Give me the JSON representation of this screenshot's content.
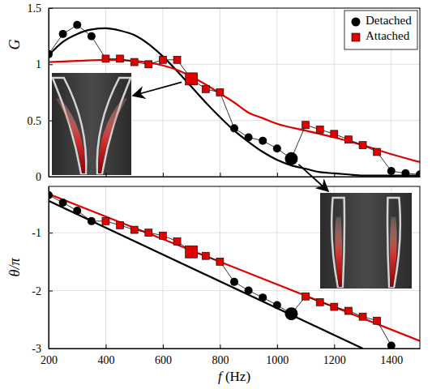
{
  "chart_data": [
    {
      "type": "line",
      "ylabel": "G",
      "xlim": [
        200,
        1500
      ],
      "xticks": [
        200,
        400,
        600,
        800,
        1000,
        1200,
        1400
      ],
      "ylim": [
        0,
        1.5
      ],
      "yticks": [
        0,
        0.5,
        1,
        1.5
      ],
      "tick_labels": "y",
      "grid": true,
      "legend": "upper right",
      "series": [
        {
          "name": "Detached",
          "color": "#000000",
          "marker": "circle",
          "highlight_x": 1050,
          "x": [
            200,
            250,
            300,
            350,
            850,
            900,
            950,
            1000,
            1050,
            1400,
            1450,
            1500
          ],
          "values": [
            1.09,
            1.27,
            1.35,
            1.25,
            0.43,
            0.35,
            0.32,
            0.25,
            0.16,
            0.05,
            0.03,
            0.02
          ],
          "fit": {
            "x": [
              200,
              250,
              300,
              350,
              400,
              450,
              500,
              550,
              600,
              650,
              700,
              750,
              800,
              850,
              900,
              950,
              1000,
              1050,
              1100,
              1150,
              1200,
              1250,
              1300,
              1350,
              1400,
              1450,
              1500
            ],
            "values": [
              1.08,
              1.2,
              1.27,
              1.31,
              1.32,
              1.3,
              1.26,
              1.18,
              1.07,
              0.94,
              0.8,
              0.66,
              0.53,
              0.41,
              0.31,
              0.22,
              0.15,
              0.1,
              0.07,
              0.04,
              0.03,
              0.02,
              0.01,
              0.01,
              0.01,
              0.01,
              0.01
            ]
          }
        },
        {
          "name": "Attached",
          "color": "#e00000",
          "marker": "square",
          "highlight_x": 700,
          "x": [
            400,
            450,
            500,
            550,
            600,
            650,
            700,
            750,
            800,
            1100,
            1150,
            1200,
            1250,
            1300,
            1350
          ],
          "values": [
            1.05,
            1.05,
            1.02,
            1.0,
            1.04,
            1.04,
            0.87,
            0.78,
            0.75,
            0.46,
            0.42,
            0.38,
            0.33,
            0.28,
            0.22
          ],
          "fit": {
            "x": [
              200,
              300,
              400,
              500,
              600,
              650,
              700,
              750,
              800,
              850,
              900,
              950,
              1000,
              1100,
              1200,
              1300,
              1400,
              1500
            ],
            "values": [
              1.02,
              1.03,
              1.04,
              1.03,
              0.99,
              0.95,
              0.89,
              0.82,
              0.74,
              0.66,
              0.57,
              0.52,
              0.47,
              0.41,
              0.35,
              0.28,
              0.2,
              0.13
            ]
          }
        }
      ]
    },
    {
      "type": "line",
      "ylabel": "θ/π",
      "xlabel": "f (Hz)",
      "xlim": [
        200,
        1500
      ],
      "xticks": [
        200,
        400,
        600,
        800,
        1000,
        1200,
        1400
      ],
      "ylim": [
        -3,
        -0.2
      ],
      "yticks": [
        -3,
        -2,
        -1
      ],
      "grid": true,
      "series": [
        {
          "color": "#000000",
          "marker": "circle",
          "highlight_x": 1050,
          "x": [
            200,
            250,
            300,
            350,
            850,
            900,
            950,
            1000,
            1050,
            1400,
            1450,
            1500
          ],
          "values": [
            -0.35,
            -0.48,
            -0.62,
            -0.8,
            -1.85,
            -2.0,
            -2.12,
            -2.25,
            -2.4,
            -2.95,
            null,
            null
          ],
          "fit": {
            "x": [
              200,
              1300
            ],
            "values": [
              -0.45,
              -3.0
            ]
          }
        },
        {
          "color": "#e00000",
          "marker": "square",
          "highlight_x": 700,
          "x": [
            400,
            450,
            500,
            550,
            600,
            650,
            700,
            750,
            800,
            1100,
            1150,
            1200,
            1250,
            1300,
            1350
          ],
          "values": [
            -0.8,
            -0.87,
            -0.95,
            -1.0,
            -1.05,
            -1.15,
            -1.33,
            -1.4,
            -1.5,
            -2.1,
            -2.2,
            -2.28,
            -2.35,
            -2.45,
            -2.52
          ],
          "fit": {
            "x": [
              200,
              1500
            ],
            "values": [
              -0.33,
              -2.87
            ]
          }
        }
      ]
    }
  ]
}
